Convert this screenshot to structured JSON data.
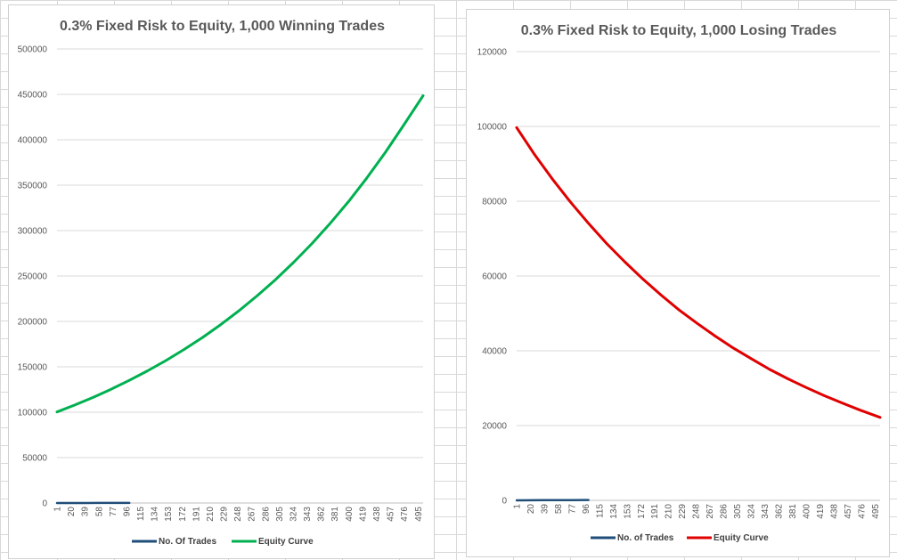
{
  "chart_data": [
    {
      "type": "line",
      "title": "0.3% Fixed Risk to Equity, 1,000 Winning Trades",
      "xlabel": "",
      "ylabel": "",
      "ylim": [
        0,
        500000
      ],
      "y_ticks": [
        "0",
        "50000",
        "100000",
        "150000",
        "200000",
        "250000",
        "300000",
        "350000",
        "400000",
        "450000",
        "500000"
      ],
      "x_tick_labels": [
        "1",
        "20",
        "39",
        "58",
        "77",
        "96",
        "115",
        "134",
        "153",
        "172",
        "191",
        "210",
        "229",
        "248",
        "267",
        "286",
        "305",
        "324",
        "343",
        "362",
        "381",
        "400",
        "419",
        "438",
        "457",
        "476",
        "495"
      ],
      "x_range": [
        1,
        502
      ],
      "grid": "horizontal",
      "legend_position": "bottom",
      "series": [
        {
          "name": "No. Of Trades",
          "color": "#1f4e79",
          "x": [
            1,
            20,
            39,
            58,
            77,
            96,
            100
          ],
          "values": [
            1,
            20,
            39,
            58,
            77,
            96,
            100
          ]
        },
        {
          "name": "Equity Curve",
          "color": "#00b050",
          "x": [
            1,
            25,
            50,
            75,
            100,
            125,
            150,
            175,
            200,
            225,
            250,
            275,
            300,
            325,
            350,
            375,
            400,
            425,
            450,
            475,
            502
          ],
          "values": [
            100300,
            107800,
            116200,
            125300,
            135100,
            145600,
            156900,
            169100,
            182300,
            196500,
            211800,
            228300,
            246000,
            265200,
            285800,
            308100,
            332000,
            357900,
            385700,
            415700,
            448600
          ]
        }
      ]
    },
    {
      "type": "line",
      "title": "0.3% Fixed Risk to Equity, 1,000 Losing Trades",
      "xlabel": "",
      "ylabel": "",
      "ylim": [
        0,
        120000
      ],
      "y_ticks": [
        "0",
        "20000",
        "40000",
        "60000",
        "80000",
        "100000",
        "120000"
      ],
      "x_tick_labels": [
        "1",
        "20",
        "39",
        "58",
        "77",
        "96",
        "115",
        "134",
        "153",
        "172",
        "191",
        "210",
        "229",
        "248",
        "267",
        "286",
        "305",
        "324",
        "343",
        "362",
        "381",
        "400",
        "419",
        "438",
        "457",
        "476",
        "495"
      ],
      "x_range": [
        1,
        502
      ],
      "grid": "horizontal",
      "legend_position": "bottom",
      "series": [
        {
          "name": "No. of Trades",
          "color": "#1f4e79",
          "x": [
            1,
            20,
            39,
            58,
            77,
            96,
            100
          ],
          "values": [
            1,
            20,
            39,
            58,
            77,
            96,
            100
          ]
        },
        {
          "name": "Equity Curve",
          "color": "#e00000",
          "x": [
            1,
            25,
            50,
            75,
            100,
            125,
            150,
            175,
            200,
            225,
            250,
            275,
            300,
            325,
            350,
            375,
            400,
            425,
            450,
            475,
            502
          ],
          "values": [
            99700,
            92700,
            86000,
            79800,
            74100,
            68700,
            63800,
            59200,
            54900,
            50900,
            47300,
            43900,
            40700,
            37800,
            35000,
            32500,
            30200,
            28000,
            26000,
            24100,
            22200
          ]
        }
      ]
    }
  ]
}
